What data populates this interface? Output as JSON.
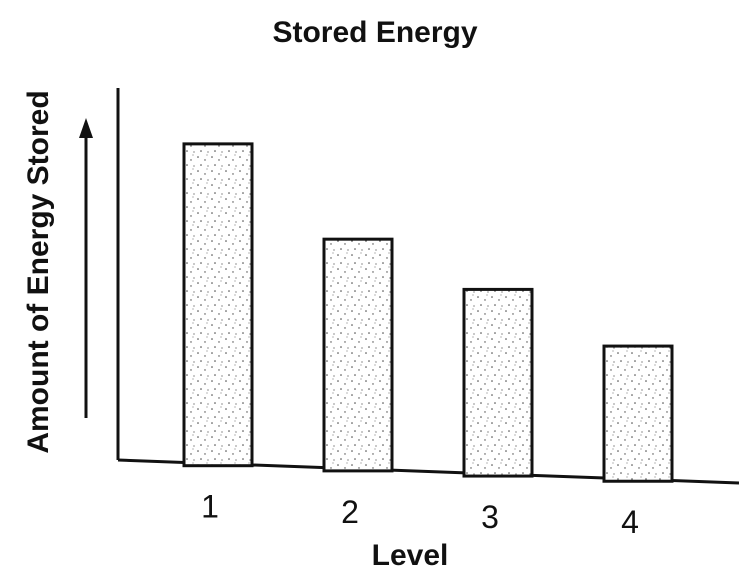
{
  "colors": {
    "ink": "#111111",
    "background": "#ffffff",
    "stipple": "#444444"
  },
  "chart_data": {
    "type": "bar",
    "title": "Stored Energy",
    "xlabel": "Level",
    "ylabel": "Amount of Energy Stored",
    "categories": [
      "1",
      "2",
      "3",
      "4"
    ],
    "values": [
      100,
      72,
      58,
      42
    ],
    "ylim": [
      0,
      110
    ],
    "grid": false,
    "legend": "none",
    "y_axis_arrow": true
  }
}
